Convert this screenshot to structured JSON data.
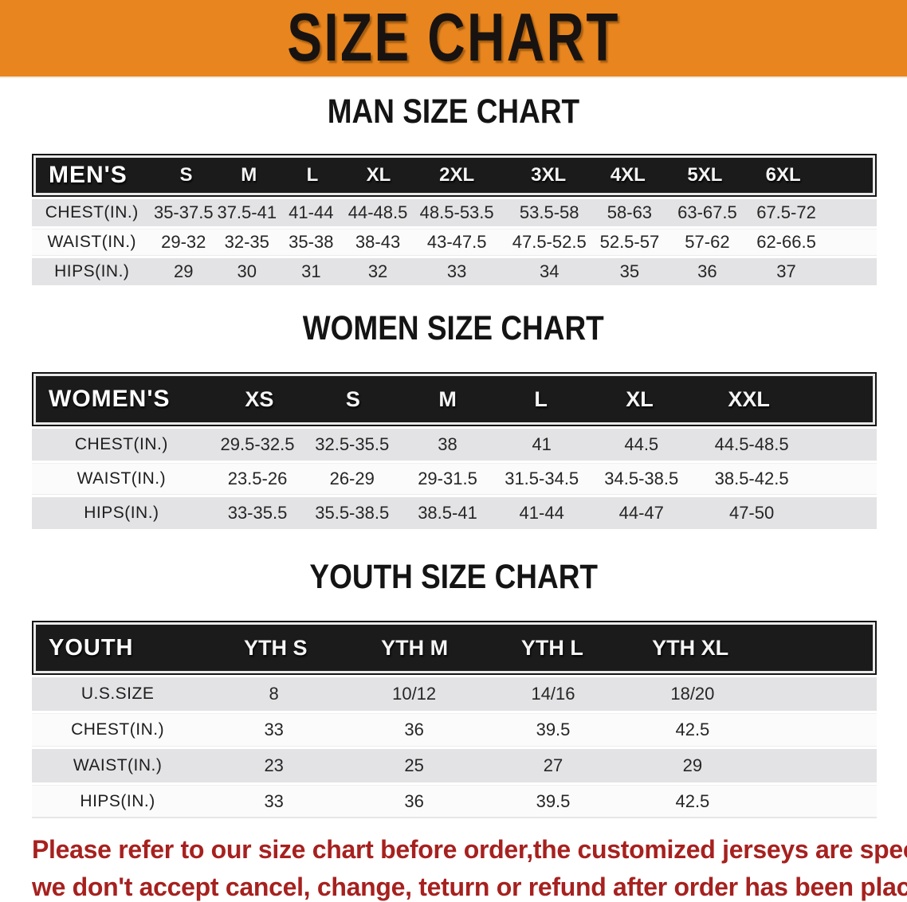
{
  "banner": {
    "title": "SIZE CHART"
  },
  "colors": {
    "banner_bg": "#E8851E",
    "header_bar": "#1B1B1B",
    "row_gray": "#E3E3E5",
    "disclaimer_red": "#A6211F"
  },
  "sections": [
    {
      "heading": "MAN SIZE CHART",
      "table": {
        "label": "MEN'S",
        "columns": [
          "S",
          "M",
          "L",
          "XL",
          "2XL",
          "3XL",
          "4XL",
          "5XL",
          "6XL"
        ],
        "rows": [
          {
            "label": "CHEST(IN.)",
            "values": [
              "35-37.5",
              "37.5-41",
              "41-44",
              "44-48.5",
              "48.5-53.5",
              "53.5-58",
              "58-63",
              "63-67.5",
              "67.5-72"
            ]
          },
          {
            "label": "WAIST(IN.)",
            "values": [
              "29-32",
              "32-35",
              "35-38",
              "38-43",
              "43-47.5",
              "47.5-52.5",
              "52.5-57",
              "57-62",
              "62-66.5"
            ]
          },
          {
            "label": "HIPS(IN.)",
            "values": [
              "29",
              "30",
              "31",
              "32",
              "33",
              "34",
              "35",
              "36",
              "37"
            ]
          }
        ]
      }
    },
    {
      "heading": "WOMEN SIZE CHART",
      "table": {
        "label": "WOMEN'S",
        "columns": [
          "XS",
          "S",
          "M",
          "L",
          "XL",
          "XXL"
        ],
        "rows": [
          {
            "label": "CHEST(IN.)",
            "values": [
              "29.5-32.5",
              "32.5-35.5",
              "38",
              "41",
              "44.5",
              "44.5-48.5"
            ]
          },
          {
            "label": "WAIST(IN.)",
            "values": [
              "23.5-26",
              "26-29",
              "29-31.5",
              "31.5-34.5",
              "34.5-38.5",
              "38.5-42.5"
            ]
          },
          {
            "label": "HIPS(IN.)",
            "values": [
              "33-35.5",
              "35.5-38.5",
              "38.5-41",
              "41-44",
              "44-47",
              "47-50"
            ]
          }
        ]
      }
    },
    {
      "heading": "YOUTH SIZE CHART",
      "table": {
        "label": "YOUTH",
        "columns": [
          "YTH S",
          "YTH M",
          "YTH L",
          "YTH XL"
        ],
        "rows": [
          {
            "label": "U.S.SIZE",
            "values": [
              "8",
              "10/12",
              "14/16",
              "18/20"
            ]
          },
          {
            "label": "CHEST(IN.)",
            "values": [
              "33",
              "36",
              "39.5",
              "42.5"
            ]
          },
          {
            "label": "WAIST(IN.)",
            "values": [
              "23",
              "25",
              "27",
              "29"
            ]
          },
          {
            "label": "HIPS(IN.)",
            "values": [
              "33",
              "36",
              "39.5",
              "42.5"
            ]
          }
        ]
      }
    }
  ],
  "disclaimer": {
    "line1": "Please refer to our size chart before order,the customized jerseys are special products,",
    "line2": "we don't accept cancel, change, teturn or refund after order has been placed!"
  }
}
